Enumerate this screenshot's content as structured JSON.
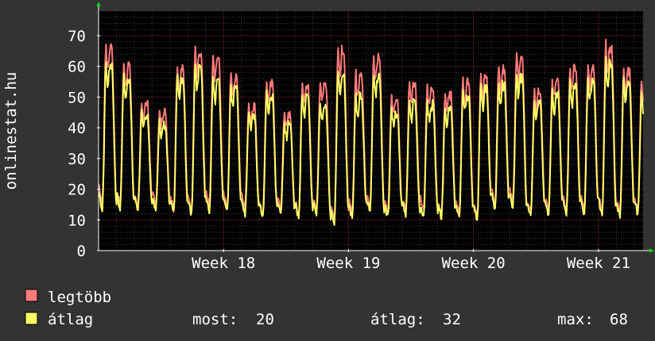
{
  "chart_data": {
    "type": "line",
    "vertical_label": "onlinestat.hu",
    "y_ticks": [
      "0",
      "10",
      "20",
      "30",
      "40",
      "50",
      "60",
      "70"
    ],
    "ylim": [
      0,
      78
    ],
    "x_ticks": [
      "Week 18",
      "Week 19",
      "Week 20",
      "Week 21"
    ],
    "x_tick_days": [
      7,
      14,
      21,
      28
    ],
    "x_range_days": [
      0,
      30.5
    ],
    "grid": true,
    "colors": {
      "background": "#333333",
      "canvas": "#000000",
      "grid_minor": "#3a3a3a",
      "grid_major": "#7a2a2a",
      "axis": "#ffffff",
      "arrow": "#00cc00",
      "max_series": "#ff7a7a",
      "avg_series": "#ffff66"
    },
    "series": [
      {
        "name": "legtöbb",
        "daily_peaks": [
          68,
          61,
          49,
          46,
          60,
          66,
          64,
          58,
          48,
          56,
          45,
          55,
          55,
          66,
          58,
          64,
          51,
          55,
          54,
          52,
          56,
          58,
          60,
          64,
          53,
          56,
          60,
          60,
          68,
          60,
          56,
          73,
          54,
          25
        ],
        "daily_lows": [
          18,
          17,
          16,
          17,
          16,
          15,
          17,
          16,
          16,
          14,
          15,
          14,
          15,
          12,
          14,
          16,
          14,
          15,
          15,
          14,
          14,
          13,
          17,
          18,
          14,
          15,
          15,
          15,
          15,
          14,
          15,
          17,
          14,
          14
        ]
      },
      {
        "name": "átlag",
        "daily_peaks": [
          62,
          57,
          45,
          42,
          57,
          61,
          56,
          54,
          45,
          52,
          42,
          51,
          48,
          59,
          51,
          58,
          46,
          49,
          49,
          47,
          52,
          54,
          55,
          58,
          49,
          52,
          55,
          56,
          62,
          56,
          52,
          68,
          50,
          20
        ],
        "daily_lows": [
          16,
          16,
          15,
          15,
          15,
          14,
          15,
          15,
          14,
          13,
          14,
          13,
          14,
          11,
          13,
          15,
          13,
          14,
          13,
          13,
          13,
          12,
          16,
          16,
          13,
          14,
          14,
          14,
          14,
          13,
          14,
          15,
          13,
          13
        ]
      }
    ],
    "legend": {
      "max_label": "legtöbb",
      "avg_label": "átlag",
      "stats": [
        {
          "label": "most:",
          "value": "20"
        },
        {
          "label": "átlag:",
          "value": "32"
        },
        {
          "label": "max:",
          "value": "68"
        }
      ]
    }
  }
}
